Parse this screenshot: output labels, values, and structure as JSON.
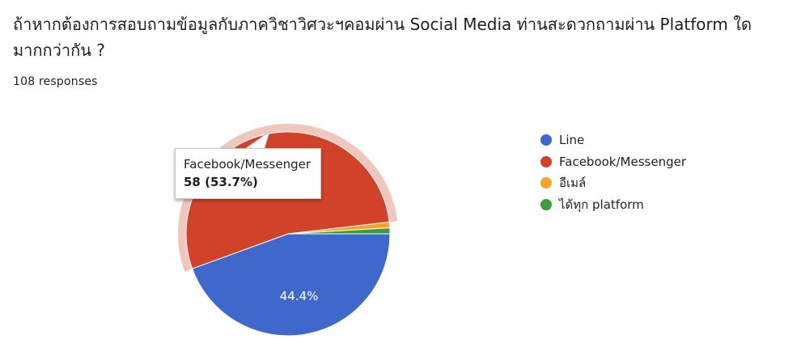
{
  "question": {
    "title": "ถ้าหากต้องการสอบถามข้อมูลกับภาควิชาวิศวะฯคอมผ่าน Social Media ท่านสะดวกถามผ่าน Platform ใดมากกว่ากัน ?",
    "responses": "108 responses"
  },
  "chart_data": {
    "type": "pie",
    "total": 108,
    "categories": [
      "Line",
      "Facebook/Messenger",
      "อีเมล์",
      "ได้ทุก platform"
    ],
    "values": [
      48,
      58,
      1,
      1
    ],
    "colors": [
      "#3e68cb",
      "#d0432a",
      "#f6a32d",
      "#3a9b3f"
    ],
    "slice_labels": [
      "44.4%",
      "",
      "",
      ""
    ],
    "highlighted": "Facebook/Messenger",
    "tooltip": {
      "label": "Facebook/Messenger",
      "value": "58 (53.7%)"
    },
    "legend_position": "right"
  }
}
